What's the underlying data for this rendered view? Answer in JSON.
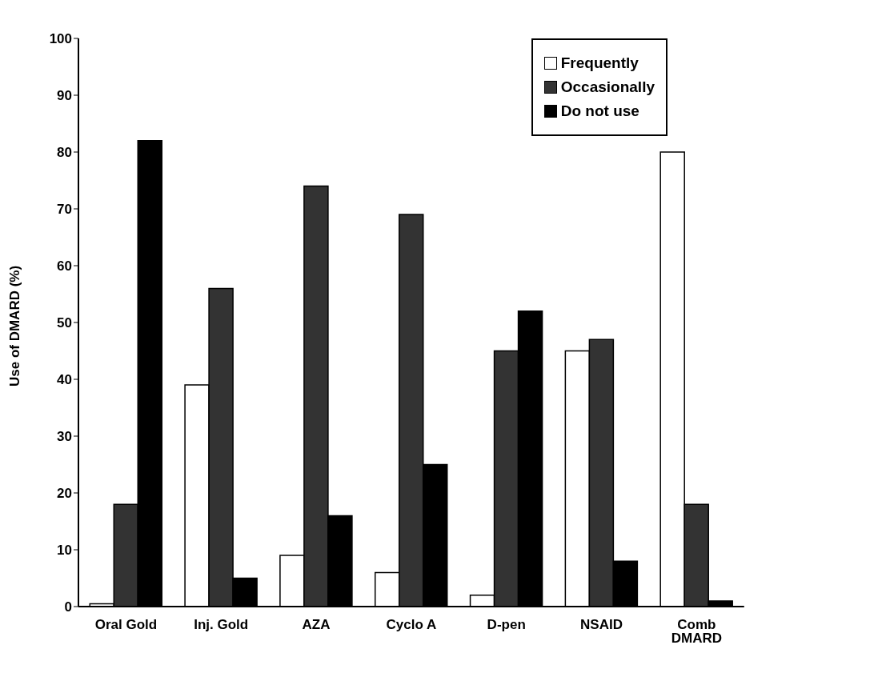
{
  "chart_data": {
    "type": "bar",
    "ylabel": "Use of DMARD  (%)",
    "categories": [
      "Oral Gold",
      "Inj. Gold",
      "AZA",
      "Cyclo A",
      "D-pen",
      "NSAID",
      "Comb DMARD"
    ],
    "series": [
      {
        "name": "Frequently",
        "color": "#ffffff",
        "values": [
          0.5,
          39,
          9,
          6,
          2,
          45,
          80
        ]
      },
      {
        "name": "Occasionally",
        "color": "#333333",
        "values": [
          18,
          56,
          74,
          69,
          45,
          47,
          18
        ]
      },
      {
        "name": "Do not use",
        "color": "#000000",
        "values": [
          82,
          5,
          16,
          25,
          52,
          8,
          1
        ]
      }
    ],
    "ylim": [
      0,
      100
    ],
    "yticks": [
      0,
      10,
      20,
      30,
      40,
      50,
      60,
      70,
      80,
      90,
      100
    ],
    "grid": false,
    "legend": "top right"
  }
}
